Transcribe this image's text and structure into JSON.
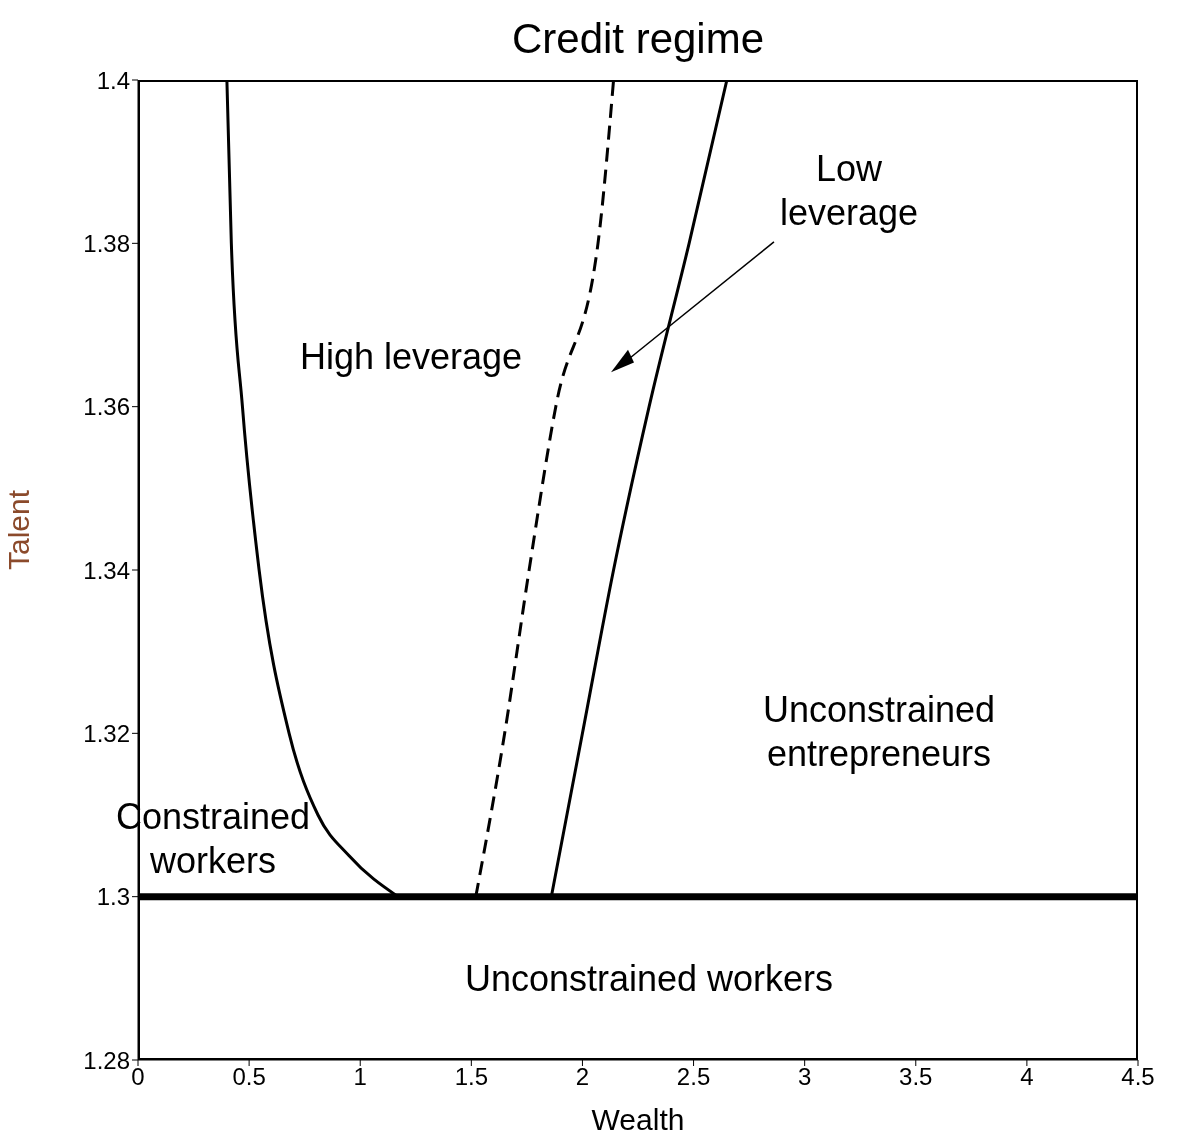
{
  "chart_data": {
    "type": "line",
    "title": "Credit regime",
    "xlabel": "Wealth",
    "ylabel": "Talent",
    "xlim": [
      0,
      4.5
    ],
    "xticks": [
      0,
      0.5,
      1,
      1.5,
      2,
      2.5,
      3,
      3.5,
      4,
      4.5
    ],
    "ylim": [
      1.28,
      1.4
    ],
    "yticks": [
      1.28,
      1.3,
      1.32,
      1.34,
      1.36,
      1.38,
      1.4
    ],
    "marker": "none",
    "series": [
      {
        "color": "#000000",
        "line_style": "solid",
        "x": [
          0.4,
          0.42,
          0.47,
          0.545,
          0.68,
          0.81,
          0.95,
          1.17
        ],
        "values": [
          1.4,
          1.38,
          1.36,
          1.34,
          1.32,
          1.31,
          1.305,
          1.3
        ]
      },
      {
        "color": "#000000",
        "line_style": "dashed",
        "x": [
          1.52,
          1.65,
          1.76,
          1.88,
          2.07,
          2.14
        ],
        "values": [
          1.3,
          1.32,
          1.34,
          1.36,
          1.38,
          1.4
        ]
      },
      {
        "color": "#000000",
        "line_style": "solid",
        "x": [
          1.86,
          2.0,
          2.14,
          2.3,
          2.48,
          2.65
        ],
        "values": [
          1.3,
          1.32,
          1.34,
          1.36,
          1.38,
          1.4
        ]
      }
    ],
    "ref_lines": [
      {
        "axis": "y",
        "value": 1.3,
        "color": "#000000"
      }
    ],
    "annotations": [
      "Low leverage",
      "High leverage",
      "Unconstrained entrepreneurs",
      "Constrained workers",
      "Unconstrained workers"
    ]
  }
}
